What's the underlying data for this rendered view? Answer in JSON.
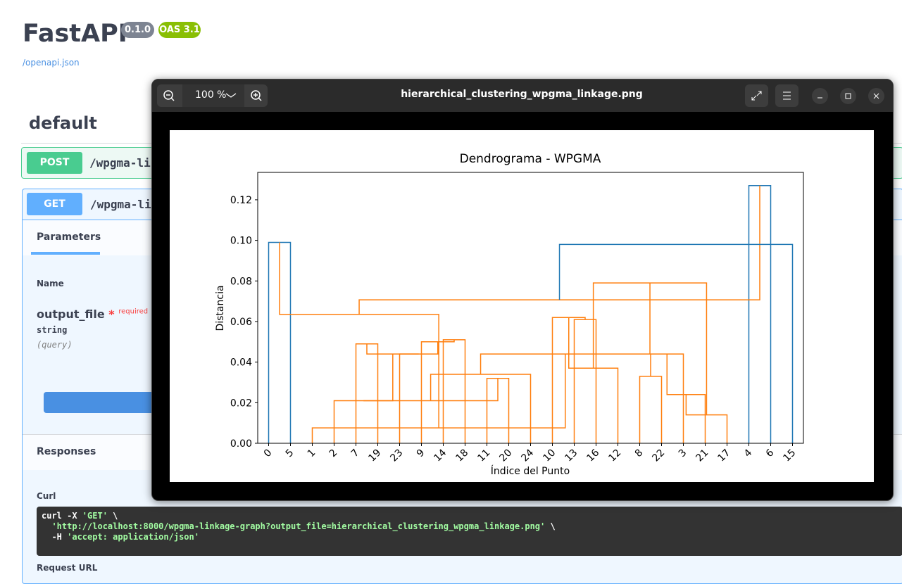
{
  "header": {
    "title": "FastAPI",
    "version": "0.1.0",
    "oas": "OAS 3.1",
    "spec_link": "/openapi.json"
  },
  "section": "default",
  "operations": [
    {
      "method": "POST",
      "path": "/wpgma-li"
    },
    {
      "method": "GET",
      "path": "/wpgma-linkage-graph"
    }
  ],
  "parameters": {
    "tab": "Parameters",
    "column": "Name",
    "name": "output_file",
    "required_mark": "*",
    "required": "required",
    "type": "string",
    "location": "(query)"
  },
  "responses": {
    "title": "Responses",
    "curl_label": "Curl",
    "curl": [
      [
        {
          "text": "curl -X ",
          "color": "#ffffff"
        },
        {
          "text": "'GET'",
          "color": "#a2fca2"
        },
        {
          "text": " \\",
          "color": "#ffffff"
        }
      ],
      [
        {
          "text": "  'http://localhost:8000/wpgma-linkage-graph?output_file=hierarchical_clustering_wpgma_linkage.png'",
          "color": "#a2fca2"
        },
        {
          "text": " \\",
          "color": "#ffffff"
        }
      ],
      [
        {
          "text": "  -H ",
          "color": "#ffffff"
        },
        {
          "text": "'accept: application/json'",
          "color": "#a2fca2"
        }
      ]
    ],
    "request_url_label": "Request URL"
  },
  "viewer": {
    "zoom": "100 %",
    "filename": "hierarchical_clustering_wpgma_linkage.png"
  },
  "chart_data": {
    "type": "dendrogram",
    "title": "Dendrograma - WPGMA",
    "x_label": "Índice del Punto",
    "y_label": "Distancia",
    "leaves": [
      0,
      5,
      1,
      2,
      7,
      19,
      23,
      9,
      14,
      18,
      11,
      20,
      24,
      10,
      13,
      16,
      12,
      8,
      22,
      3,
      21,
      17,
      4,
      6,
      15
    ],
    "linkage": [
      [
        0,
        5,
        0.099
      ],
      [
        4,
        6,
        0.127
      ],
      [
        7,
        19,
        0.049
      ],
      [
        14,
        18,
        0.051
      ],
      [
        9,
        28,
        0.05
      ],
      [
        23,
        29,
        0.044
      ],
      [
        27,
        30,
        0.044
      ],
      [
        11,
        20,
        0.032
      ],
      [
        2,
        31,
        0.021
      ],
      [
        33,
        32,
        0.021
      ],
      [
        34,
        24,
        0.034
      ],
      [
        13,
        16,
        0.061
      ],
      [
        10,
        36,
        0.062
      ],
      [
        37,
        12,
        0.037
      ],
      [
        8,
        22,
        0.033
      ],
      [
        39,
        3,
        0.044
      ],
      [
        40,
        21,
        0.024
      ],
      [
        41,
        17,
        0.014
      ],
      [
        38,
        42,
        0.079
      ],
      [
        35,
        43,
        0.044
      ],
      [
        1,
        44,
        0.0076
      ],
      [
        25,
        45,
        0.0635
      ],
      [
        46,
        26,
        0.0707
      ],
      [
        47,
        15,
        0.098
      ]
    ],
    "link_colors": [
      "#1f77b4",
      "#1f77b4",
      "#ff7f0e",
      "#ff7f0e",
      "#ff7f0e",
      "#ff7f0e",
      "#ff7f0e",
      "#ff7f0e",
      "#ff7f0e",
      "#ff7f0e",
      "#ff7f0e",
      "#ff7f0e",
      "#ff7f0e",
      "#ff7f0e",
      "#ff7f0e",
      "#ff7f0e",
      "#ff7f0e",
      "#ff7f0e",
      "#ff7f0e",
      "#ff7f0e",
      "#ff7f0e",
      "#ff7f0e",
      "#ff7f0e",
      "#1f77b4"
    ],
    "ylim": [
      0,
      0.1335
    ],
    "yticks": [
      {
        "value": 0,
        "label": "0.00"
      },
      {
        "value": 0.02,
        "label": "0.02"
      },
      {
        "value": 0.04,
        "label": "0.04"
      },
      {
        "value": 0.06,
        "label": "0.06"
      },
      {
        "value": 0.08,
        "label": "0.08"
      },
      {
        "value": 0.1,
        "label": "0.10"
      },
      {
        "value": 0.12,
        "label": "0.12"
      }
    ]
  }
}
